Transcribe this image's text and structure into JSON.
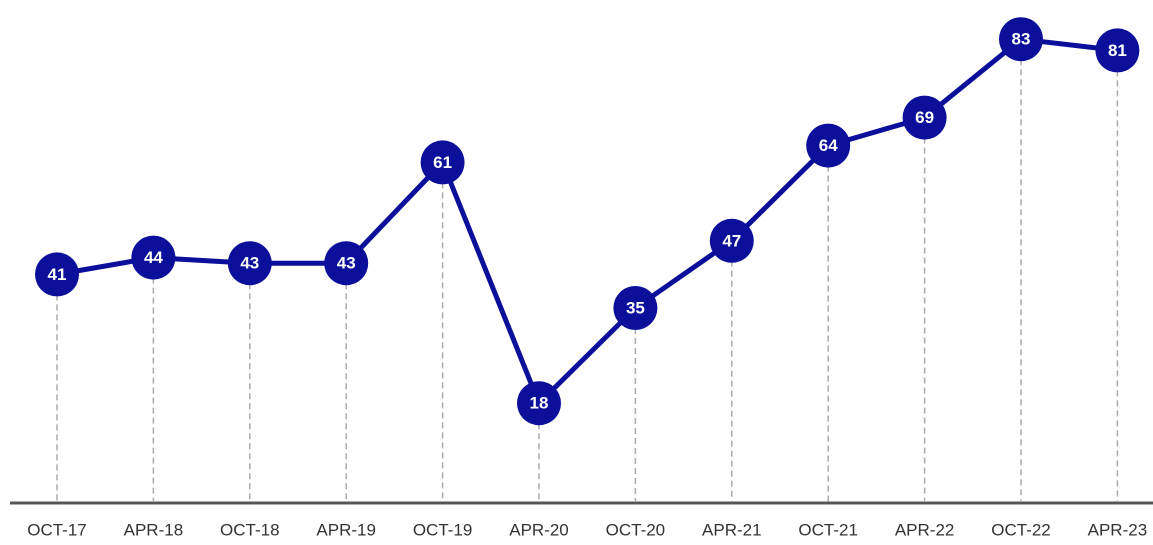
{
  "chart_data": {
    "type": "line",
    "categories": [
      "OCT-17",
      "APR-18",
      "OCT-18",
      "APR-19",
      "OCT-19",
      "APR-20",
      "OCT-20",
      "APR-21",
      "OCT-21",
      "APR-22",
      "OCT-22",
      "APR-23"
    ],
    "values": [
      41,
      44,
      43,
      43,
      61,
      18,
      35,
      47,
      64,
      69,
      83,
      81
    ],
    "color": "#0b0f9a",
    "ylim": [
      0,
      90
    ]
  }
}
